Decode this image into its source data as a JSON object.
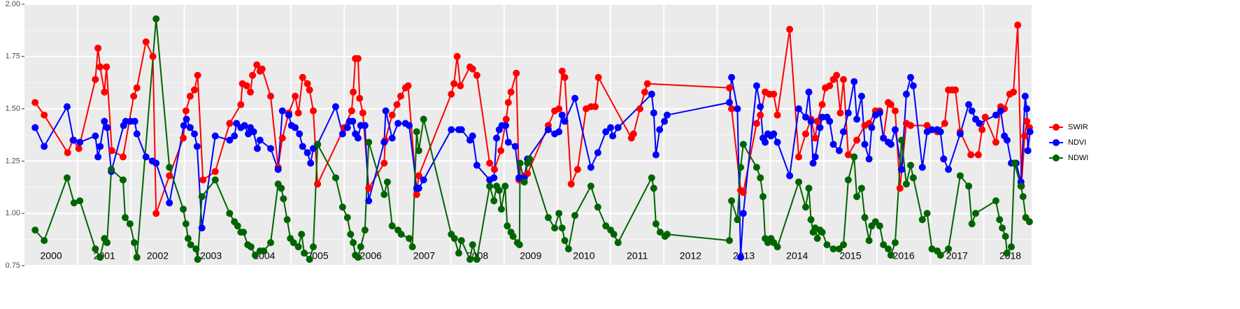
{
  "chart_data": {
    "type": "line",
    "xlim": [
      2000,
      2018.9
    ],
    "xticks": [
      2001,
      2002,
      2003,
      2004,
      2005,
      2006,
      2007,
      2008,
      2009,
      2010,
      2011,
      2012,
      2013,
      2014,
      2015,
      2016,
      2017,
      2018
    ],
    "year_labels": [
      2000,
      2001,
      2002,
      2003,
      2004,
      2005,
      2006,
      2007,
      2008,
      2009,
      2010,
      2011,
      2012,
      2013,
      2014,
      2015,
      2016,
      2017,
      2018
    ],
    "ylim": [
      0.75,
      2.0
    ],
    "yticks": [
      0.75,
      {
        "value": 1,
        "label": "1.00"
      },
      1.25,
      {
        "value": 1.5,
        "label": "1.50"
      },
      1.75,
      {
        "value": 2,
        "label": "2.00"
      }
    ],
    "grid": true,
    "legend": "right",
    "series": [
      {
        "name": "SWIR",
        "color": "#ff0000",
        "x": [
          2000.2,
          2000.37,
          2000.81,
          2000.91,
          2001.02,
          2001.33,
          2001.38,
          2001.42,
          2001.5,
          2001.54,
          2001.64,
          2001.85,
          2002.05,
          2002.11,
          2002.28,
          2002.41,
          2002.47,
          2002.72,
          2002.98,
          2003.03,
          2003.11,
          2003.19,
          2003.25,
          2003.35,
          2003.58,
          2003.85,
          2004.06,
          2004.09,
          2004.17,
          2004.24,
          2004.28,
          2004.36,
          2004.42,
          2004.46,
          2004.62,
          2004.76,
          2004.84,
          2004.96,
          2005.08,
          2005.14,
          2005.22,
          2005.31,
          2005.35,
          2005.42,
          2005.5,
          2006.0,
          2006.14,
          2006.17,
          2006.21,
          2006.26,
          2006.29,
          2006.35,
          2006.46,
          2006.75,
          2006.77,
          2006.9,
          2006.99,
          2007.06,
          2007.15,
          2007.2,
          2007.36,
          2007.4,
          2008.01,
          2008.06,
          2008.12,
          2008.18,
          2008.36,
          2008.41,
          2008.49,
          2008.73,
          2008.82,
          2008.94,
          2009.04,
          2009.08,
          2009.13,
          2009.23,
          2009.28,
          2009.38,
          2009.44,
          2009.83,
          2009.95,
          2010.03,
          2010.09,
          2010.14,
          2010.26,
          2010.38,
          2010.54,
          2010.63,
          2010.71,
          2010.77,
          2011.39,
          2011.43,
          2011.55,
          2011.64,
          2011.69,
          2013.23,
          2013.27,
          2013.44,
          2013.49,
          2013.74,
          2013.81,
          2013.9,
          2013.98,
          2014.06,
          2014.13,
          2014.36,
          2014.53,
          2014.66,
          2014.76,
          2014.84,
          2014.88,
          2014.97,
          2015.03,
          2015.11,
          2015.18,
          2015.24,
          2015.31,
          2015.37,
          2015.46,
          2015.62,
          2015.77,
          2015.85,
          2015.97,
          2016.05,
          2016.12,
          2016.21,
          2016.26,
          2016.34,
          2016.43,
          2016.55,
          2016.63,
          2016.94,
          2017.13,
          2017.27,
          2017.34,
          2017.41,
          2017.47,
          2017.56,
          2017.76,
          2017.9,
          2017.97,
          2018.03,
          2018.23,
          2018.32,
          2018.39,
          2018.49,
          2018.56,
          2018.64,
          2018.71,
          2018.77,
          2018.81,
          2018.86
        ],
        "values": [
          1.53,
          1.47,
          1.29,
          1.35,
          1.31,
          1.64,
          1.79,
          1.7,
          1.58,
          1.7,
          1.3,
          1.27,
          1.56,
          1.6,
          1.82,
          1.75,
          1.0,
          1.18,
          1.36,
          1.49,
          1.56,
          1.59,
          1.66,
          1.16,
          1.2,
          1.43,
          1.52,
          1.62,
          1.61,
          1.58,
          1.66,
          1.71,
          1.68,
          1.69,
          1.56,
          1.22,
          1.36,
          1.48,
          1.56,
          1.48,
          1.65,
          1.62,
          1.59,
          1.49,
          1.14,
          1.41,
          1.49,
          1.58,
          1.74,
          1.74,
          1.55,
          1.48,
          1.12,
          1.24,
          1.35,
          1.47,
          1.52,
          1.56,
          1.6,
          1.61,
          1.09,
          1.18,
          1.57,
          1.62,
          1.75,
          1.61,
          1.7,
          1.69,
          1.66,
          1.24,
          1.21,
          1.3,
          1.45,
          1.53,
          1.58,
          1.67,
          1.16,
          1.18,
          1.19,
          1.42,
          1.49,
          1.5,
          1.68,
          1.65,
          1.14,
          1.21,
          1.5,
          1.51,
          1.51,
          1.65,
          1.36,
          1.38,
          1.5,
          1.58,
          1.62,
          1.6,
          1.5,
          1.11,
          1.1,
          1.43,
          1.47,
          1.58,
          1.57,
          1.57,
          1.47,
          1.88,
          1.27,
          1.38,
          1.45,
          1.36,
          1.44,
          1.52,
          1.6,
          1.61,
          1.64,
          1.66,
          1.48,
          1.64,
          1.28,
          1.35,
          1.42,
          1.43,
          1.49,
          1.49,
          1.36,
          1.53,
          1.52,
          1.49,
          1.12,
          1.43,
          1.42,
          1.42,
          1.39,
          1.43,
          1.59,
          1.59,
          1.59,
          1.39,
          1.28,
          1.28,
          1.4,
          1.46,
          1.34,
          1.51,
          1.5,
          1.57,
          1.58,
          1.9,
          1.13,
          1.37,
          1.44,
          1.41
        ]
      },
      {
        "name": "NDVI",
        "color": "#0000ff",
        "x": [
          2000.2,
          2000.37,
          2000.8,
          2000.92,
          2001.04,
          2001.33,
          2001.38,
          2001.42,
          2001.5,
          2001.55,
          2001.63,
          2001.86,
          2001.9,
          2001.99,
          2002.07,
          2002.11,
          2002.28,
          2002.4,
          2002.47,
          2002.72,
          2002.99,
          2003.04,
          2003.11,
          2003.19,
          2003.24,
          2003.33,
          2003.58,
          2003.85,
          2003.94,
          2003.98,
          2004.06,
          2004.13,
          2004.2,
          2004.24,
          2004.3,
          2004.37,
          2004.42,
          2004.62,
          2004.76,
          2004.84,
          2004.96,
          2005.01,
          2005.08,
          2005.16,
          2005.22,
          2005.31,
          2005.37,
          2005.42,
          2005.5,
          2005.84,
          2005.97,
          2006.06,
          2006.1,
          2006.16,
          2006.21,
          2006.26,
          2006.31,
          2006.39,
          2006.46,
          2006.75,
          2006.78,
          2006.9,
          2007.01,
          2007.15,
          2007.22,
          2007.36,
          2007.4,
          2007.49,
          2008.01,
          2008.15,
          2008.2,
          2008.36,
          2008.41,
          2008.49,
          2008.73,
          2008.81,
          2008.86,
          2008.91,
          2008.96,
          2009.03,
          2009.08,
          2009.21,
          2009.28,
          2009.38,
          2009.44,
          2009.83,
          2009.95,
          2010.03,
          2010.09,
          2010.14,
          2010.33,
          2010.63,
          2010.76,
          2010.91,
          2011.0,
          2011.04,
          2011.14,
          2011.77,
          2011.81,
          2011.85,
          2011.92,
          2012.01,
          2012.06,
          2013.23,
          2013.27,
          2013.38,
          2013.44,
          2013.49,
          2013.74,
          2013.81,
          2013.86,
          2013.9,
          2013.95,
          2014.01,
          2014.06,
          2014.13,
          2014.36,
          2014.53,
          2014.66,
          2014.72,
          2014.76,
          2014.8,
          2014.84,
          2014.93,
          2014.97,
          2015.06,
          2015.11,
          2015.18,
          2015.29,
          2015.37,
          2015.46,
          2015.57,
          2015.62,
          2015.71,
          2015.77,
          2015.85,
          2015.9,
          2015.97,
          2016.05,
          2016.12,
          2016.21,
          2016.26,
          2016.34,
          2016.46,
          2016.55,
          2016.63,
          2016.68,
          2016.85,
          2016.94,
          2017.03,
          2017.13,
          2017.19,
          2017.25,
          2017.34,
          2017.56,
          2017.72,
          2017.78,
          2017.85,
          2017.92,
          2018.23,
          2018.32,
          2018.39,
          2018.44,
          2018.52,
          2018.61,
          2018.7,
          2018.78,
          2018.81,
          2018.83,
          2018.87
        ],
        "values": [
          1.41,
          1.32,
          1.51,
          1.35,
          1.34,
          1.37,
          1.27,
          1.32,
          1.44,
          1.41,
          1.2,
          1.42,
          1.44,
          1.44,
          1.44,
          1.38,
          1.27,
          1.25,
          1.24,
          1.05,
          1.42,
          1.45,
          1.41,
          1.38,
          1.32,
          0.93,
          1.37,
          1.35,
          1.37,
          1.43,
          1.41,
          1.42,
          1.38,
          1.41,
          1.39,
          1.31,
          1.35,
          1.31,
          1.21,
          1.49,
          1.47,
          1.42,
          1.41,
          1.38,
          1.32,
          1.29,
          1.24,
          1.31,
          1.33,
          1.51,
          1.38,
          1.41,
          1.44,
          1.44,
          1.38,
          1.36,
          1.42,
          1.42,
          1.06,
          1.34,
          1.49,
          1.36,
          1.43,
          1.43,
          1.42,
          1.12,
          1.12,
          1.16,
          1.4,
          1.4,
          1.4,
          1.35,
          1.37,
          1.23,
          1.16,
          1.17,
          1.36,
          1.4,
          1.42,
          1.42,
          1.34,
          1.32,
          1.17,
          1.17,
          1.26,
          1.4,
          1.38,
          1.39,
          1.47,
          1.44,
          1.55,
          1.22,
          1.29,
          1.39,
          1.41,
          1.37,
          1.41,
          1.57,
          1.48,
          1.28,
          1.4,
          1.44,
          1.47,
          1.53,
          1.65,
          1.5,
          0.79,
          1.0,
          1.61,
          1.51,
          1.36,
          1.34,
          1.38,
          1.37,
          1.38,
          1.34,
          1.18,
          1.5,
          1.46,
          1.58,
          1.44,
          1.24,
          1.27,
          1.41,
          1.46,
          1.46,
          1.44,
          1.33,
          1.3,
          1.39,
          1.48,
          1.63,
          1.45,
          1.56,
          1.33,
          1.26,
          1.41,
          1.47,
          1.48,
          1.36,
          1.34,
          1.33,
          1.4,
          1.21,
          1.57,
          1.65,
          1.61,
          1.22,
          1.39,
          1.4,
          1.4,
          1.39,
          1.26,
          1.21,
          1.38,
          1.52,
          1.49,
          1.45,
          1.43,
          1.47,
          1.49,
          1.37,
          1.35,
          1.24,
          1.24,
          1.15,
          1.56,
          1.5,
          1.3,
          1.39
        ]
      },
      {
        "name": "NDWI",
        "color": "#006400",
        "x": [
          2000.2,
          2000.37,
          2000.8,
          2000.93,
          2001.04,
          2001.33,
          2001.42,
          2001.5,
          2001.55,
          2001.63,
          2001.85,
          2001.89,
          2001.98,
          2002.06,
          2002.11,
          2002.47,
          2002.72,
          2002.98,
          2003.03,
          2003.07,
          2003.12,
          2003.22,
          2003.25,
          2003.33,
          2003.58,
          2003.85,
          2003.94,
          2004.0,
          2004.06,
          2004.11,
          2004.19,
          2004.25,
          2004.33,
          2004.42,
          2004.49,
          2004.62,
          2004.76,
          2004.82,
          2004.86,
          2004.93,
          2004.99,
          2005.05,
          2005.14,
          2005.2,
          2005.25,
          2005.35,
          2005.42,
          2005.5,
          2005.84,
          2005.97,
          2006.06,
          2006.12,
          2006.17,
          2006.21,
          2006.26,
          2006.31,
          2006.39,
          2006.46,
          2006.75,
          2006.81,
          2006.9,
          2007.01,
          2007.07,
          2007.22,
          2007.28,
          2007.36,
          2007.4,
          2007.49,
          2008.01,
          2008.07,
          2008.15,
          2008.2,
          2008.36,
          2008.41,
          2008.49,
          2008.73,
          2008.81,
          2008.86,
          2008.91,
          2008.95,
          2009.02,
          2009.06,
          2009.13,
          2009.17,
          2009.25,
          2009.29,
          2009.3,
          2009.38,
          2009.44,
          2009.48,
          2009.83,
          2009.95,
          2010.03,
          2010.09,
          2010.14,
          2010.21,
          2010.33,
          2010.63,
          2010.76,
          2010.91,
          2011.0,
          2011.06,
          2011.14,
          2011.77,
          2011.81,
          2011.85,
          2011.93,
          2012.02,
          2012.06,
          2013.23,
          2013.27,
          2013.38,
          2013.44,
          2013.49,
          2013.74,
          2013.81,
          2013.86,
          2013.9,
          2013.95,
          2014.01,
          2014.06,
          2014.13,
          2014.53,
          2014.66,
          2014.72,
          2014.76,
          2014.8,
          2014.84,
          2014.88,
          2014.93,
          2014.97,
          2015.06,
          2015.18,
          2015.29,
          2015.37,
          2015.46,
          2015.57,
          2015.62,
          2015.71,
          2015.77,
          2015.85,
          2015.9,
          2015.97,
          2016.05,
          2016.12,
          2016.21,
          2016.26,
          2016.34,
          2016.46,
          2016.55,
          2016.63,
          2016.68,
          2016.85,
          2016.94,
          2017.03,
          2017.13,
          2017.19,
          2017.34,
          2017.56,
          2017.72,
          2017.78,
          2017.85,
          2018.23,
          2018.3,
          2018.35,
          2018.41,
          2018.44,
          2018.52,
          2018.58,
          2018.7,
          2018.74,
          2018.79,
          2018.86
        ],
        "values": [
          0.92,
          0.87,
          1.17,
          1.05,
          1.06,
          0.83,
          0.79,
          0.88,
          0.86,
          1.21,
          1.16,
          0.98,
          0.95,
          0.86,
          0.79,
          1.93,
          1.22,
          1.02,
          0.95,
          0.88,
          0.85,
          0.83,
          0.78,
          1.08,
          1.16,
          1.0,
          0.96,
          0.94,
          0.91,
          0.91,
          0.85,
          0.84,
          0.8,
          0.82,
          0.82,
          0.86,
          1.14,
          1.12,
          1.07,
          0.97,
          0.88,
          0.86,
          0.84,
          0.9,
          0.81,
          0.78,
          0.84,
          1.33,
          1.17,
          1.03,
          0.98,
          0.9,
          0.86,
          0.8,
          0.79,
          0.84,
          0.92,
          1.34,
          1.09,
          1.15,
          0.94,
          0.92,
          0.9,
          0.88,
          0.84,
          1.39,
          1.3,
          1.45,
          0.9,
          0.88,
          0.81,
          0.87,
          0.78,
          0.85,
          0.78,
          1.13,
          1.06,
          1.13,
          1.11,
          1.02,
          1.13,
          0.94,
          0.91,
          0.89,
          0.86,
          0.85,
          1.24,
          1.15,
          1.24,
          1.26,
          0.98,
          0.93,
          1.0,
          0.93,
          0.87,
          0.83,
          0.99,
          1.13,
          1.03,
          0.94,
          0.92,
          0.9,
          0.86,
          1.17,
          1.12,
          0.95,
          0.91,
          0.89,
          0.9,
          0.87,
          1.06,
          0.97,
          1.22,
          1.33,
          1.22,
          1.17,
          1.08,
          0.88,
          0.86,
          0.88,
          0.86,
          0.84,
          1.15,
          1.03,
          1.12,
          0.97,
          0.91,
          0.93,
          0.88,
          0.92,
          0.91,
          0.85,
          0.83,
          0.83,
          0.85,
          1.16,
          1.27,
          1.08,
          1.12,
          0.98,
          0.87,
          0.94,
          0.96,
          0.94,
          0.85,
          0.83,
          0.8,
          0.86,
          1.35,
          1.14,
          1.23,
          1.17,
          0.97,
          1.0,
          0.83,
          0.82,
          0.8,
          0.83,
          1.18,
          1.13,
          0.95,
          1.0,
          1.06,
          0.97,
          0.93,
          0.89,
          0.81,
          0.84,
          1.24,
          1.13,
          1.08,
          0.98,
          0.96
        ]
      }
    ]
  }
}
